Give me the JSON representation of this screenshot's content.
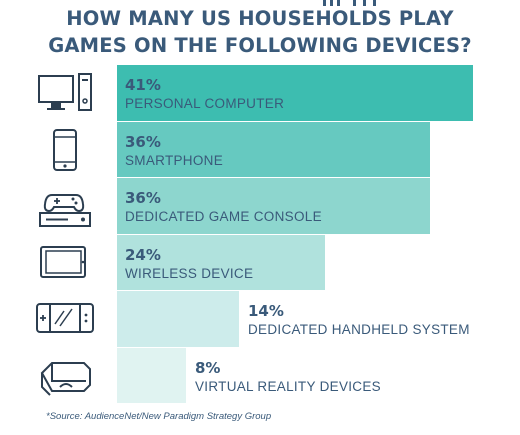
{
  "title_lines": [
    "HOW MANY US HOUSEHOLDS PLAY",
    "GAMES ON THE FOLLOWING DEVICES?"
  ],
  "source": "*Source: AudienceNet/New Paradigm Strategy Group",
  "colors": {
    "text": "#3a5a7a",
    "bars": [
      "#3dbdb0",
      "#66c9c0",
      "#8dd6ce",
      "#b0e2dd",
      "#cdeceb",
      "#e0f3f1"
    ],
    "icon": "#2c3e50"
  },
  "chart_data": {
    "type": "bar",
    "orientation": "horizontal",
    "title": "HOW MANY US HOUSEHOLDS PLAY GAMES ON THE FOLLOWING DEVICES?",
    "unit": "%",
    "xlim": [
      0,
      100
    ],
    "categories": [
      "PERSONAL COMPUTER",
      "SMARTPHONE",
      "DEDICATED GAME CONSOLE",
      "WIRELESS DEVICE",
      "DEDICATED HANDHELD SYSTEM",
      "VIRTUAL REALITY DEVICES"
    ],
    "values": [
      41,
      36,
      36,
      24,
      14,
      8
    ],
    "value_labels": [
      "41%",
      "36%",
      "36%",
      "24%",
      "14%",
      "8%"
    ],
    "icons": [
      "desktop-computer-icon",
      "smartphone-icon",
      "game-console-icon",
      "tablet-icon",
      "handheld-console-icon",
      "vr-headset-icon"
    ]
  }
}
